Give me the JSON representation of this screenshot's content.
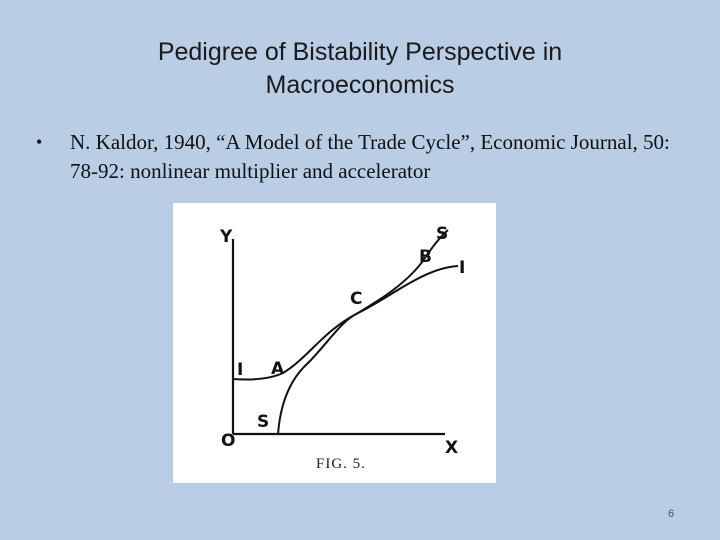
{
  "slide": {
    "title": "Pedigree of Bistability Perspective in Macroeconomics",
    "bullet_marker": "•",
    "bullet_text": "N. Kaldor, 1940, “A Model of the Trade Cycle”, Economic Journal, 50: 78-92: nonlinear multiplier and accelerator",
    "page_number": "6"
  },
  "figure": {
    "y_axis_label": "Y",
    "x_axis_label": "X",
    "origin_label": "O",
    "curve_i_start_label": "I",
    "curve_i_end_label": "I",
    "curve_s_start_label": "S",
    "curve_s_end_label": "S",
    "point_a_label": "A",
    "point_b_label": "B",
    "point_c_label": "C",
    "caption": "FIG. 5."
  }
}
